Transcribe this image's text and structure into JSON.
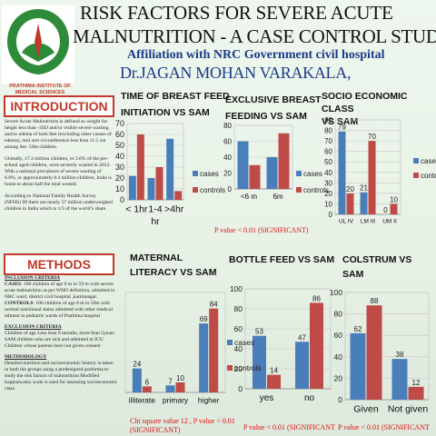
{
  "header": {
    "title_line1": "RISK FACTORS FOR SEVERE ACUTE",
    "title_line2": "MALNUTRITION - A CASE CONTROL STUDY",
    "affiliation": "Affiliation  with NRC Government civil hospital",
    "author": "Dr.JAGAN MOHAN VARAKALA,",
    "institute": "PRATHIMA INSTITUTE OF MEDICAL SCIENCES"
  },
  "sections": {
    "introduction": {
      "heading": "INTRODUCTION",
      "paragraphs": [
        "Severe Acute Malnutrition is defined as weight for height less than -3SD and/or visible severe wasting and/or edema of both feet (excluding other causes of edema), mid arm circumference less than 11.5 cm among 6m- 59m children.",
        "Globally, 17.3 million children, or 2.6% of the pre-school aged children, were severely wasted in 2012. With a national prevalence of severe wasting of 6.8%, or approximately 8.4 million children, India is home to about half the total wasted.",
        "According to National Family Health Survey (NFHS) III there are nearly 57 million underweighed children in India which is 1/3 of the world’s share"
      ]
    },
    "methods": {
      "heading": "METHODS",
      "inclusion_heading": "INCLUSION CRITERIA",
      "cases_label": "CASES",
      "cases_text": ": 100 children of age 6 m to 59 m with severe acute malnutrition as per WHO definition, admitted to NRC ward, district civil hospital ,karimnagar.",
      "controls_label": "CONTROLS",
      "controls_text": ": 100 children  of age 6 m to 59m with normal nutritional status admitted with other medical ailment in pediatric wards of  Prathima hospital",
      "exclusion_heading": "EXCLUSION CRITERIA",
      "exclusion_text": "Children of age Less than 6 months, more than 5years SAM children who are sick and admitted in ICU Children whose parents have not given consent",
      "methodology_heading": "METHODOLOGY",
      "methodology_text": "   Detailed nutrition and socioeconomic history is taken in both the groups using a predesigned proforma to study the risk factors of malnutrition Modified kuppuswamy scale is used for assessing socioeconomic class"
    }
  },
  "charts": {
    "time_of_breast_feed": {
      "title_line1": "TIME OF BREAST FEED",
      "title_line2": "INITIATION VS SAM"
    },
    "exclusive_breast_feeding": {
      "title_line1": "EXCLUSIVE BREAST",
      "title_line2": "FEEDING VS SAM",
      "pvalue": "P value  < 0.01 (SIGNIFICANT)"
    },
    "socio_economic": {
      "title_line1": "SOCIO ECONOMIC CLASS",
      "title_line2": "VS SAM"
    },
    "maternal_literacy": {
      "title_line1": "MATERNAL",
      "title_line2": "LITERACY VS SAM",
      "pvalue_line1": "Chi square value  12 , P value < 0.01",
      "pvalue_line2": "(SIGNIFICANT)"
    },
    "bottle_feed": {
      "title_line1": "BOTTLE FEED VS SAM",
      "pvalue": "P value < 0.01 (SIGNIFICANT"
    },
    "colostrum": {
      "title_line1": "COLSTRUM VS",
      "title_line2": "SAM",
      "pvalue": "P value < 0.01 (SIGNIFICANT"
    }
  },
  "colors": {
    "cases": "#4a7ebb",
    "controls": "#be4b48",
    "heading_red": "#c0392b",
    "author_blue": "#1a3a8a"
  },
  "chart_data": [
    {
      "id": "time_of_breast_feed",
      "type": "bar",
      "categories": [
        "< 1hr",
        "1-4",
        ">4hr"
      ],
      "category_line2": [
        "",
        "hr",
        ""
      ],
      "series": [
        {
          "name": "cases",
          "values": [
            22,
            20,
            56
          ]
        },
        {
          "name": "controls",
          "values": [
            60,
            30,
            8
          ]
        }
      ],
      "ylim": [
        0,
        70
      ],
      "yticks": [
        0,
        10,
        20,
        30,
        40,
        50,
        60,
        70
      ],
      "legend": "right",
      "data_labels": false
    },
    {
      "id": "exclusive_breast_feeding",
      "type": "bar",
      "categories": [
        "<6 m",
        "6m"
      ],
      "series": [
        {
          "name": "cases",
          "values": [
            60,
            40
          ]
        },
        {
          "name": "controls",
          "values": [
            30,
            70
          ]
        }
      ],
      "ylim": [
        0,
        80
      ],
      "yticks": [
        0,
        20,
        40,
        60,
        80
      ],
      "legend": "right",
      "data_labels": false
    },
    {
      "id": "socio_economic",
      "type": "bar",
      "categories": [
        "UL IV",
        "LM III",
        "UM II"
      ],
      "series": [
        {
          "name": "cases",
          "values": [
            79,
            21,
            0
          ]
        },
        {
          "name": "controls",
          "values": [
            20,
            70,
            10
          ]
        }
      ],
      "data_labels_cases": [
        "79",
        "21",
        "0"
      ],
      "data_labels_controls": [
        "20",
        "70",
        "10"
      ],
      "ylim": [
        0,
        90
      ],
      "yticks": [
        0,
        10,
        20,
        30,
        40,
        50,
        60,
        70,
        80,
        90
      ],
      "legend": "right",
      "legend_labels": [
        "cases",
        "contro"
      ],
      "data_labels": true
    },
    {
      "id": "maternal_literacy",
      "type": "bar",
      "categories": [
        "illiterate",
        "primary",
        "higher"
      ],
      "series": [
        {
          "name": "cases",
          "values": [
            24,
            7,
            69
          ]
        },
        {
          "name": "controls",
          "values": [
            6,
            10,
            84
          ]
        }
      ],
      "ylim": [
        0,
        100
      ],
      "yticks": [],
      "legend": "none",
      "data_labels": true
    },
    {
      "id": "bottle_feed",
      "type": "bar",
      "categories": [
        "yes",
        "no"
      ],
      "series": [
        {
          "name": "cases",
          "values": [
            53,
            47
          ]
        },
        {
          "name": "controls",
          "values": [
            14,
            86
          ]
        }
      ],
      "ylim": [
        0,
        100
      ],
      "yticks": [
        0,
        20,
        40,
        60,
        80,
        100
      ],
      "legend": "right",
      "legend_labels": [
        "cases",
        "controls"
      ],
      "data_labels": true
    },
    {
      "id": "colostrum",
      "type": "bar",
      "categories": [
        "Given",
        "Not given"
      ],
      "series": [
        {
          "name": "cases",
          "values": [
            62,
            38
          ]
        },
        {
          "name": "controls",
          "values": [
            88,
            12
          ]
        }
      ],
      "ylim": [
        0,
        100
      ],
      "yticks": [
        0,
        20,
        40,
        60,
        80,
        100
      ],
      "legend": "none",
      "data_labels": true
    }
  ]
}
